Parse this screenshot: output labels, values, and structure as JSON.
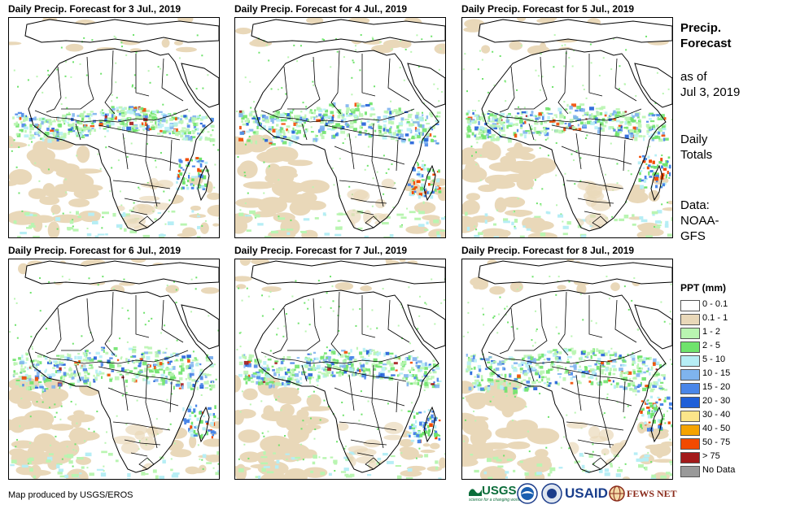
{
  "panels": [
    {
      "title": "Daily Precip. Forecast for 3 Jul., 2019"
    },
    {
      "title": "Daily Precip. Forecast for 4 Jul., 2019"
    },
    {
      "title": "Daily Precip. Forecast for 5 Jul., 2019"
    },
    {
      "title": "Daily Precip. Forecast for 6 Jul., 2019"
    },
    {
      "title": "Daily Precip. Forecast for 7 Jul., 2019"
    },
    {
      "title": "Daily Precip. Forecast for 8 Jul., 2019"
    }
  ],
  "sidebar": {
    "heading_line1": "Precip.",
    "heading_line2": "Forecast",
    "asof_line1": "as of",
    "asof_line2": "Jul 3, 2019",
    "totals_line1": "Daily",
    "totals_line2": "Totals",
    "data_line1": "Data:",
    "data_line2": "NOAA-",
    "data_line3": "GFS"
  },
  "legend": {
    "title": "PPT (mm)",
    "items": [
      {
        "label": "0 - 0.1",
        "color": "#ffffff"
      },
      {
        "label": "0.1 - 1",
        "color": "#e9d8b9"
      },
      {
        "label": "1 - 2",
        "color": "#b9f5b1"
      },
      {
        "label": "2 - 5",
        "color": "#6fe36c"
      },
      {
        "label": "5 - 10",
        "color": "#b6eef5"
      },
      {
        "label": "10 - 15",
        "color": "#7fb4ee"
      },
      {
        "label": "15 - 20",
        "color": "#4a86e8"
      },
      {
        "label": "20 - 30",
        "color": "#1f5fd8"
      },
      {
        "label": "30 - 40",
        "color": "#fbe58a"
      },
      {
        "label": "40 - 50",
        "color": "#f5a300"
      },
      {
        "label": "50 - 75",
        "color": "#f24a00"
      },
      {
        "label": "> 75",
        "color": "#a31a1a"
      },
      {
        "label": "No Data",
        "color": "#999999"
      }
    ]
  },
  "credit": "Map produced by USGS/EROS",
  "logos": {
    "usgs": "USGS",
    "usgs_tagline": "science for a changing world",
    "usaid": "USAID",
    "fewsnet": "FEWS NET"
  }
}
